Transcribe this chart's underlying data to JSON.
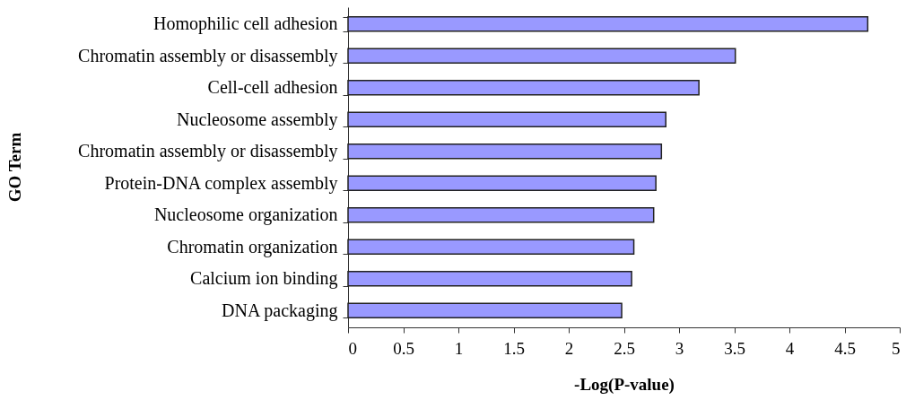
{
  "chart_data": {
    "type": "bar",
    "orientation": "horizontal",
    "xlabel": "-Log(P-value)",
    "ylabel": "GO Term",
    "categories": [
      "Homophilic cell adhesion",
      "Chromatin assembly or disassembly",
      "Cell-cell adhesion",
      "Nucleosome assembly",
      "Chromatin assembly or disassembly",
      "Protein-DNA complex assembly",
      "Nucleosome organization",
      "Chromatin organization",
      "Calcium ion binding",
      "DNA packaging"
    ],
    "values": [
      4.71,
      3.51,
      3.18,
      2.88,
      2.84,
      2.79,
      2.77,
      2.59,
      2.57,
      2.48
    ],
    "color": "#9999ff",
    "xlim": [
      0,
      5
    ],
    "xticks": [
      0,
      0.5,
      1,
      1.5,
      2,
      2.5,
      3,
      3.5,
      4,
      4.5,
      5
    ],
    "grid": false
  }
}
